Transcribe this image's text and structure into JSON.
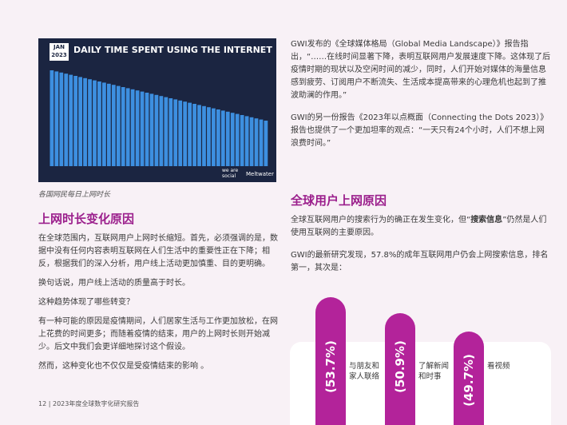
{
  "image": {
    "badge": [
      "JAN",
      "2023"
    ],
    "title": "DAILY TIME SPENT USING THE INTERNET",
    "brand_1": "we are social",
    "brand_2": "Meltwater"
  },
  "caption": "各国网民每日上网时长",
  "left": {
    "heading": "上网时长变化原因",
    "paragraphs": [
      "在全球范围内，互联网用户上网时长缩短。首先，必须强调的是，数据中没有任何内容表明互联网在人们生活中的重要性正在下降；相反，根据我们的深入分析，用户线上活动更加慎重、目的更明确。",
      "换句话说，用户线上活动的质量高于时长。",
      "这种趋势体现了哪些转变？",
      "有一种可能的原因是疫情期间，人们居家生活与工作更加放松，在网上花费的时间更多；而随着疫情的结束，用户的上网时长则开始减少。后文中我们会更详细地探讨这个假设。",
      "然而，这种变化也不仅仅是受疫情结束的影响 。"
    ]
  },
  "right": {
    "paragraphs": [
      "GWI发布的《全球媒体格局（Global Media Landscape）》报告指出，“……在线时间显著下降，表明互联网用户发展速度下降。这体现了后疫情时期的现状以及空闲时间的减少，同时，人们开始对媒体的海量信息感到疲劳、订阅用户不断流失、生活成本提高带来的心理危机也起到了推波助澜的作用。”",
      "GWI的另一份报告《2023年以点概面（Connecting the Dots 2023）》报告也提供了一个更加坦率的观点：“一天只有24个小时，人们不想上网浪费时间。”"
    ],
    "heading": "全球用户上网原因",
    "search_paragraph": [
      "全球互联网用户的搜索行为的确正在发生变化，但“",
      "搜索信息",
      "”仍然是人们使用互联网的主要原因。"
    ],
    "finding": "GWI的最新研究发现，57.8%的成年互联网用户仍会上网搜索信息，排名第一，其次是：",
    "reasons": [
      {
        "percent": "(53.7%)",
        "label": "与朋友和家人联络"
      },
      {
        "percent": "(50.9%)",
        "label": "了解新闻和时事"
      },
      {
        "percent": "(49.7%)",
        "label": "看视频"
      }
    ]
  },
  "footer": {
    "page": "12",
    "separator": "|",
    "title": "2023年度全球数字化研究报告"
  }
}
